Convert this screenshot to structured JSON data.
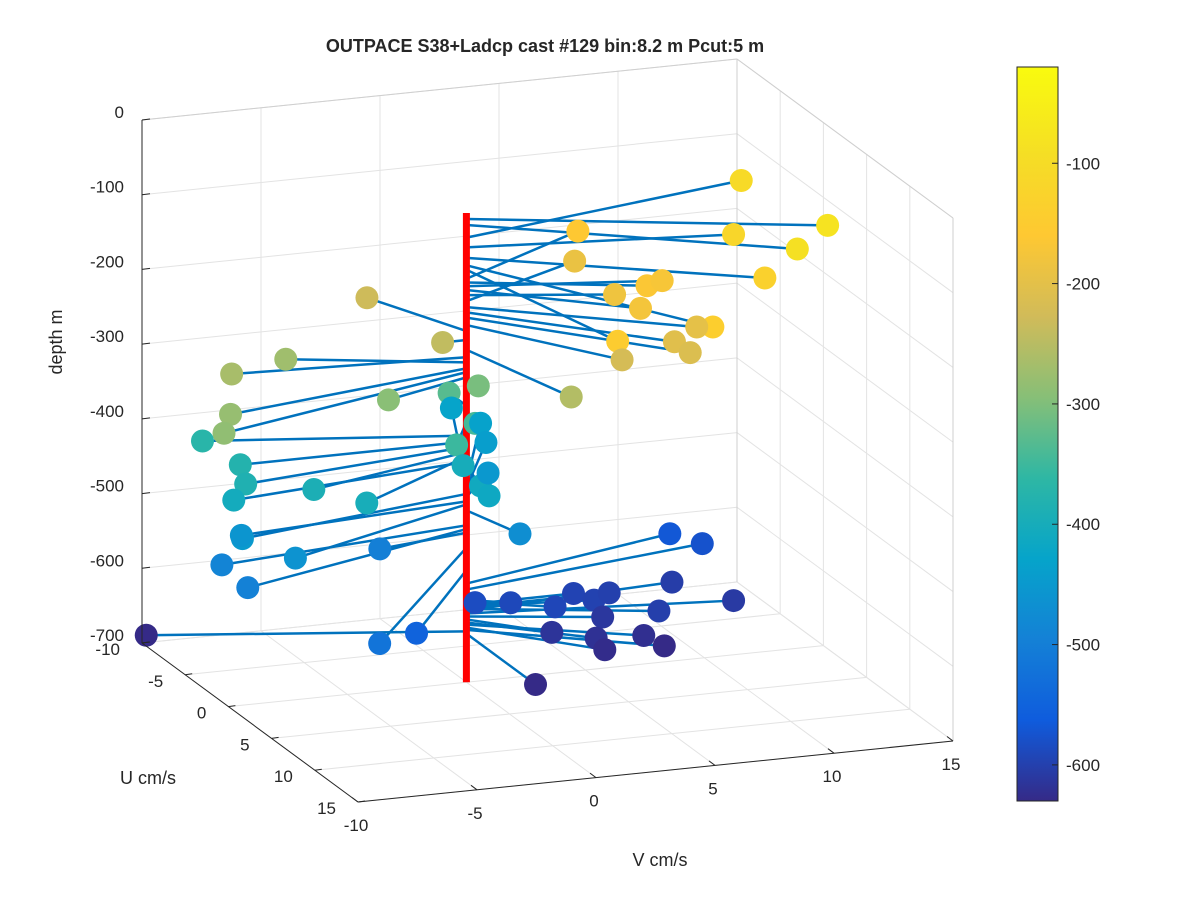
{
  "chart_data": {
    "type": "scatter",
    "title": "OUTPACE S38+Ladcp cast #129 bin:8.2 m  Pcut:5 m",
    "xlabel": "V cm/s",
    "ylabel": "U cm/s",
    "zlabel": "depth m",
    "xlim": [
      -10,
      15
    ],
    "ylim": [
      -10,
      15
    ],
    "zlim": [
      -700,
      0
    ],
    "xticks": [
      "-10",
      "-5",
      "0",
      "5",
      "10",
      "15"
    ],
    "yticks": [
      "-10",
      "-5",
      "0",
      "5",
      "10",
      "15"
    ],
    "zticks": [
      "0",
      "-100",
      "-200",
      "-300",
      "-400",
      "-500",
      "-600",
      "-700"
    ],
    "grid": true,
    "colorbar": {
      "colormap": "parula",
      "range": [
        -630,
        -20
      ],
      "ticks": [
        "-100",
        "-200",
        "-300",
        "-400",
        "-500",
        "-600"
      ]
    },
    "vertical_line": {
      "color": "#ff0000",
      "u": 0,
      "v": 0,
      "z_range": [
        -700,
        -72
      ]
    },
    "stick_color": "#0072bd",
    "points": [
      {
        "z": -80,
        "u": 6,
        "v": 13
      },
      {
        "z": -88,
        "u": 8,
        "v": 11
      },
      {
        "z": -105,
        "u": -4,
        "v": 13
      },
      {
        "z": -118,
        "u": 2,
        "v": 10.5
      },
      {
        "z": -132,
        "u": 7,
        "v": 10
      },
      {
        "z": -142,
        "u": 12,
        "v": 6
      },
      {
        "z": -148,
        "u": 12,
        "v": 2
      },
      {
        "z": -160,
        "u": -5,
        "v": 6.5
      },
      {
        "z": -165,
        "u": 3,
        "v": 6.5
      },
      {
        "z": -170,
        "u": 2,
        "v": 7.5
      },
      {
        "z": -175,
        "u": 5,
        "v": 5.5
      },
      {
        "z": -182,
        "u": 2,
        "v": 5.5
      },
      {
        "z": -190,
        "u": -4,
        "v": 6
      },
      {
        "z": -198,
        "u": 6,
        "v": 7.5
      },
      {
        "z": -205,
        "u": 7,
        "v": 6.2
      },
      {
        "z": -212,
        "u": 8,
        "v": 6.5
      },
      {
        "z": -222,
        "u": 7,
        "v": 4
      },
      {
        "z": -230,
        "u": -6,
        "v": -2
      },
      {
        "z": -242,
        "u": 0,
        "v": -1
      },
      {
        "z": -255,
        "u": 8,
        "v": 1.5
      },
      {
        "z": -265,
        "u": -1,
        "v": -9.5
      },
      {
        "z": -272,
        "u": -3,
        "v": -6.5
      },
      {
        "z": -280,
        "u": 3,
        "v": -11
      },
      {
        "z": -285,
        "u": 5,
        "v": -12
      },
      {
        "z": -292,
        "u": 2,
        "v": -4
      },
      {
        "z": -305,
        "u": 0,
        "v": 0.5
      },
      {
        "z": -330,
        "u": -2,
        "v": 0
      },
      {
        "z": -345,
        "u": 1,
        "v": 0
      },
      {
        "z": -352,
        "u": 3,
        "v": -1.5
      },
      {
        "z": -370,
        "u": -3,
        "v": -10
      },
      {
        "z": -378,
        "u": 0,
        "v": -9.5
      },
      {
        "z": -385,
        "u": 2,
        "v": -10
      },
      {
        "z": -392,
        "u": 3,
        "v": -7.5
      },
      {
        "z": -398,
        "u": 5,
        "v": -6
      },
      {
        "z": -400,
        "u": 1,
        "v": -0.5
      },
      {
        "z": -405,
        "u": 2,
        "v": -10.5
      },
      {
        "z": -410,
        "u": 3,
        "v": -0.5
      },
      {
        "z": -415,
        "u": 4,
        "v": -0.5
      },
      {
        "z": -428,
        "u": -10,
        "v": 3
      },
      {
        "z": -433,
        "u": -8,
        "v": 3.5
      },
      {
        "z": -440,
        "u": -6,
        "v": 3
      },
      {
        "z": -448,
        "u": 3,
        "v": -10.5
      },
      {
        "z": -452,
        "u": -3,
        "v": 2
      },
      {
        "z": -458,
        "u": 1.5,
        "v": -10
      },
      {
        "z": -462,
        "u": 5,
        "v": -9
      },
      {
        "z": -470,
        "u": 4,
        "v": 0.8
      },
      {
        "z": -490,
        "u": 2,
        "v": -11
      },
      {
        "z": -495,
        "u": 5,
        "v": -11
      },
      {
        "z": -500,
        "u": 1,
        "v": -4
      },
      {
        "z": -520,
        "u": 12,
        "v": -8
      },
      {
        "z": -550,
        "u": 8,
        "v": -5
      },
      {
        "z": -568,
        "u": -4,
        "v": 10
      },
      {
        "z": -576,
        "u": -3,
        "v": 11
      },
      {
        "z": -585,
        "u": 1,
        "v": 0
      },
      {
        "z": -590,
        "u": 1,
        "v": 1.5
      },
      {
        "z": -592,
        "u": 2,
        "v": 3
      },
      {
        "z": -596,
        "u": 0,
        "v": 4.5
      },
      {
        "z": -598,
        "u": 1,
        "v": 5
      },
      {
        "z": -600,
        "u": 0,
        "v": 6
      },
      {
        "z": -602,
        "u": 3,
        "v": 7
      },
      {
        "z": -604,
        "u": -1,
        "v": 9
      },
      {
        "z": -608,
        "u": 2,
        "v": 10.5
      },
      {
        "z": -612,
        "u": 2,
        "v": 5
      },
      {
        "z": -616,
        "u": 3,
        "v": 2.5
      },
      {
        "z": -620,
        "u": 4,
        "v": 4
      },
      {
        "z": -623,
        "u": 4,
        "v": 6
      },
      {
        "z": -627,
        "u": 5,
        "v": 4
      },
      {
        "z": -630,
        "u": 5,
        "v": 6.5
      },
      {
        "z": -632,
        "u": -4,
        "v": -12
      },
      {
        "z": -635,
        "u": 8,
        "v": 0
      }
    ]
  }
}
